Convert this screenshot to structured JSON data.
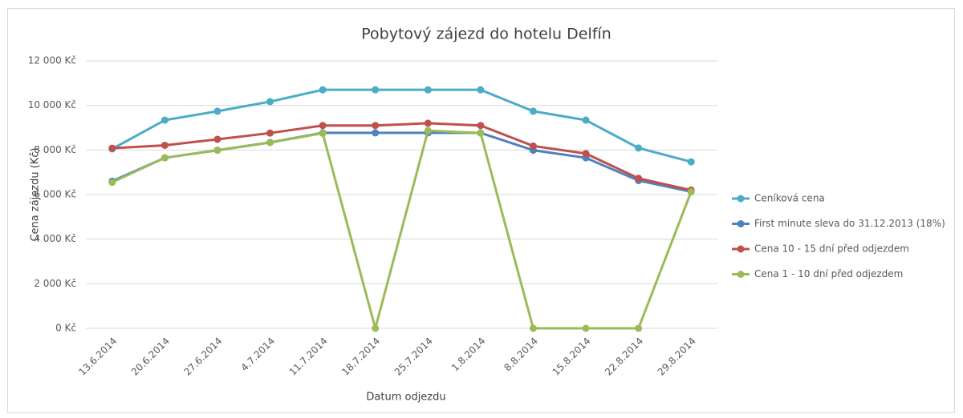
{
  "chart_data": {
    "type": "line",
    "title": "Pobytový zájezd do hotelu Delfín",
    "x_label": "Datum odjezdu",
    "y_label": "Cena zájezdu (Kč)",
    "categories": [
      "13.6.2014",
      "20.6.2014",
      "27.6.2014",
      "4.7.2014",
      "11.7.2014",
      "18.7.2014",
      "25.7.2014",
      "1.8.2014",
      "8.8.2014",
      "15.8.2014",
      "22.8.2014",
      "29.8.2014"
    ],
    "series": [
      {
        "name": "Ceníková cena",
        "color": "#4bacc6",
        "values": [
          8050,
          9340,
          9740,
          10170,
          10700,
          10700,
          10700,
          10700,
          9740,
          9340,
          8090,
          7470
        ]
      },
      {
        "name": "First minute sleva do 31.12.2013 (18%)",
        "color": "#4f81bd",
        "values": [
          6600,
          7650,
          7990,
          8340,
          8770,
          8770,
          8770,
          8770,
          7990,
          7650,
          6630,
          6130
        ]
      },
      {
        "name": "Cena 10 - 15 dní před odjezdem",
        "color": "#c0504d",
        "values": [
          8080,
          8210,
          8480,
          8760,
          9100,
          9100,
          9200,
          9100,
          8180,
          7840,
          6730,
          6200
        ]
      },
      {
        "name": "Cena 1 - 10 dní před odjezdem",
        "color": "#9bbb59",
        "values": [
          6550,
          7650,
          7990,
          8340,
          8750,
          0,
          8870,
          8760,
          0,
          0,
          0,
          6130
        ]
      }
    ],
    "ylim": [
      0,
      12000
    ],
    "yticks": [
      {
        "value": 0,
        "label": "0 Kč"
      },
      {
        "value": 2000,
        "label": "2 000 Kč"
      },
      {
        "value": 4000,
        "label": "4 000 Kč"
      },
      {
        "value": 6000,
        "label": "6 000 Kč"
      },
      {
        "value": 8000,
        "label": "8 000 Kč"
      },
      {
        "value": 10000,
        "label": "10 000 Kč"
      },
      {
        "value": 12000,
        "label": "12 000 Kč"
      }
    ],
    "grid": true,
    "legend": "right"
  }
}
